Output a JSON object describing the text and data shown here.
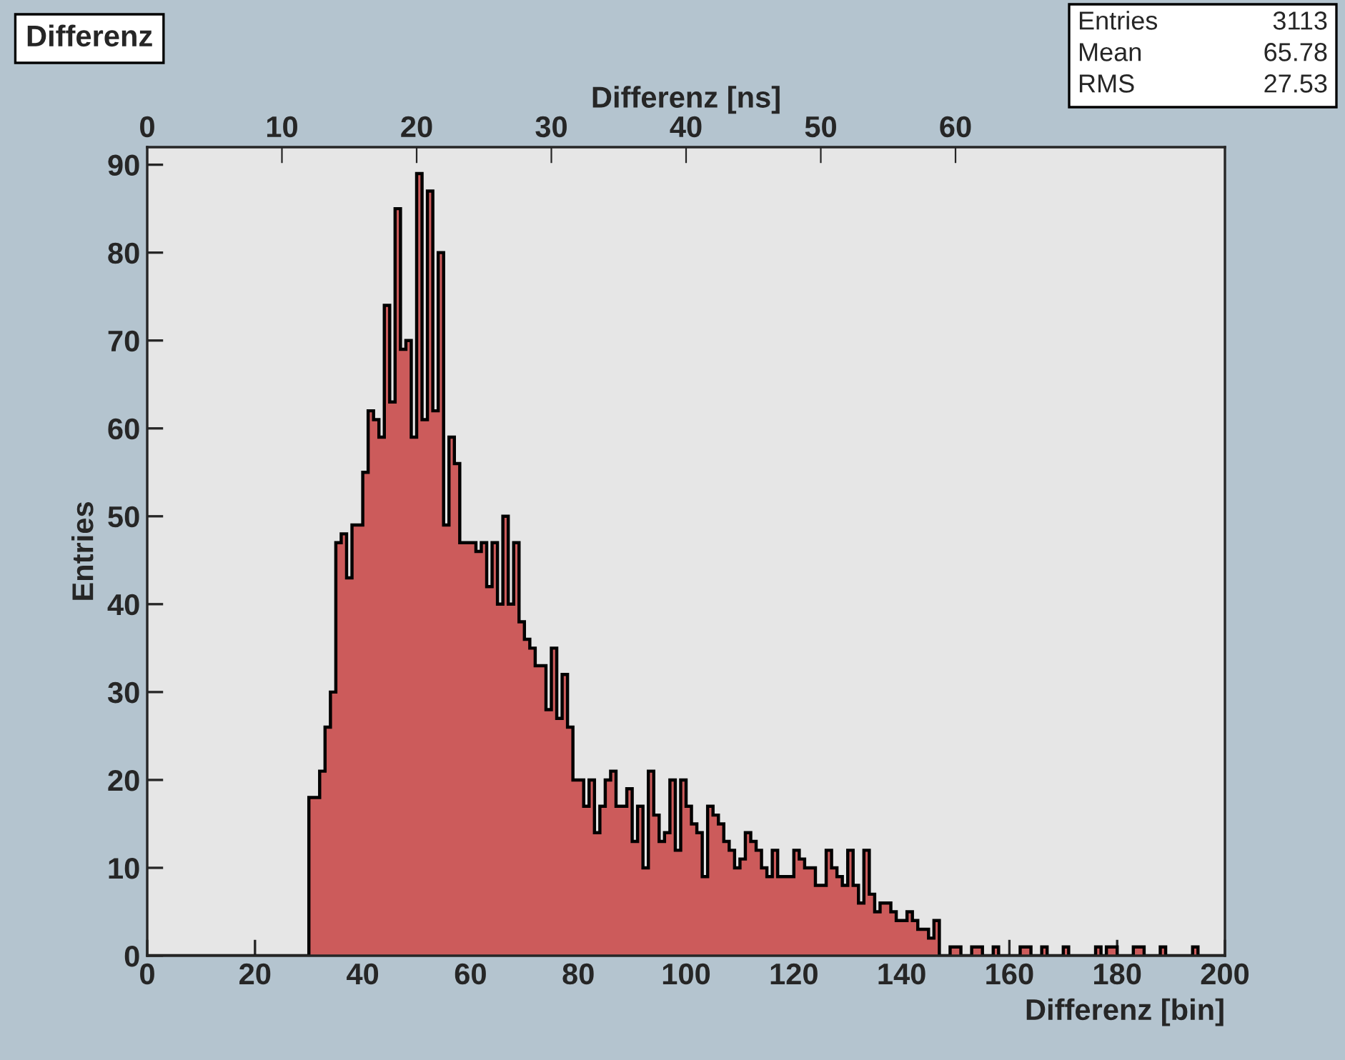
{
  "chart_data": {
    "type": "histogram",
    "title": "Differenz",
    "xlabel": "Differenz [bin]",
    "ylabel": "Entries",
    "x2label": "Differenz [ns]",
    "annotations": [
      "Entries 3113",
      "Mean 65.78",
      "RMS 27.53"
    ],
    "color": "#cc5b5b",
    "bins": [
      0,
      1,
      2,
      3,
      4,
      5,
      6,
      7,
      8,
      9,
      10,
      11,
      12,
      13,
      14,
      15,
      16,
      17,
      18,
      19,
      20,
      21,
      22,
      23,
      24,
      25,
      26,
      27,
      28,
      29,
      30,
      31,
      32,
      33,
      34,
      35,
      36,
      37,
      38,
      39,
      40,
      41,
      42,
      43,
      44,
      45,
      46,
      47,
      48,
      49,
      50,
      51,
      52,
      53,
      54,
      55,
      56,
      57,
      58,
      59,
      60,
      61,
      62,
      63,
      64,
      65,
      66,
      67,
      68,
      69,
      70,
      71,
      72,
      73,
      74,
      75,
      76,
      77,
      78,
      79,
      80,
      81,
      82,
      83,
      84,
      85,
      86,
      87,
      88,
      89,
      90,
      91,
      92,
      93,
      94,
      95,
      96,
      97,
      98,
      99,
      100,
      101,
      102,
      103,
      104,
      105,
      106,
      107,
      108,
      109,
      110,
      111,
      112,
      113,
      114,
      115,
      116,
      117,
      118,
      119,
      120,
      121,
      122,
      123,
      124,
      125,
      126,
      127,
      128,
      129,
      130,
      131,
      132,
      133,
      134,
      135,
      136,
      137,
      138,
      139,
      140,
      141,
      142,
      143,
      144,
      145,
      146,
      147,
      148,
      149,
      150,
      151,
      152,
      153,
      154,
      155,
      156,
      157,
      158,
      159,
      160,
      161,
      162,
      163,
      164,
      165,
      166,
      167,
      168,
      169,
      170,
      171,
      172,
      173,
      174,
      175,
      176,
      177,
      178,
      179,
      180,
      181,
      182,
      183,
      184,
      185,
      186,
      187,
      188,
      189,
      190,
      191,
      192,
      193,
      194,
      195,
      196,
      197,
      198,
      199,
      200
    ],
    "values": [
      0,
      0,
      0,
      0,
      0,
      0,
      0,
      0,
      0,
      0,
      0,
      0,
      0,
      0,
      0,
      0,
      0,
      0,
      0,
      0,
      0,
      0,
      0,
      0,
      0,
      0,
      0,
      0,
      0,
      0,
      18,
      18,
      21,
      26,
      30,
      47,
      48,
      43,
      49,
      49,
      55,
      62,
      61,
      59,
      74,
      63,
      85,
      69,
      70,
      59,
      89,
      61,
      87,
      62,
      80,
      49,
      59,
      56,
      47,
      47,
      47,
      46,
      47,
      42,
      47,
      40,
      50,
      40,
      47,
      38,
      36,
      35,
      33,
      33,
      28,
      35,
      27,
      32,
      26,
      20,
      20,
      17,
      20,
      14,
      17,
      20,
      21,
      17,
      17,
      19,
      13,
      17,
      10,
      21,
      16,
      13,
      14,
      20,
      12,
      20,
      17,
      15,
      14,
      9,
      17,
      16,
      15,
      13,
      12,
      10,
      11,
      14,
      13,
      12,
      10,
      9,
      12,
      9,
      9,
      9,
      12,
      11,
      10,
      10,
      8,
      8,
      12,
      10,
      9,
      8,
      12,
      8,
      6,
      12,
      7,
      5,
      6,
      6,
      5,
      4,
      4,
      5,
      4,
      3,
      3,
      2,
      4,
      0,
      0,
      1,
      1,
      0,
      0,
      1,
      1,
      0,
      0,
      1,
      0,
      0,
      0,
      0,
      1,
      1,
      0,
      0,
      1,
      0,
      0,
      0,
      1,
      0,
      0,
      0,
      0,
      0,
      1,
      0,
      1,
      1,
      0,
      0,
      0,
      1,
      1,
      0,
      0,
      0,
      1,
      0,
      0,
      0,
      0,
      0,
      1,
      0,
      0,
      0,
      0,
      0
    ],
    "xlim": [
      0,
      200
    ],
    "xticks": [
      0,
      20,
      40,
      60,
      80,
      100,
      120,
      140,
      160,
      180,
      200
    ],
    "ylim": [
      0,
      92
    ],
    "yticks": [
      0,
      10,
      20,
      30,
      40,
      50,
      60,
      70,
      80,
      90
    ],
    "x2lim": [
      0,
      80
    ],
    "x2ticks": [
      0,
      10,
      20,
      30,
      40,
      50,
      60
    ]
  }
}
